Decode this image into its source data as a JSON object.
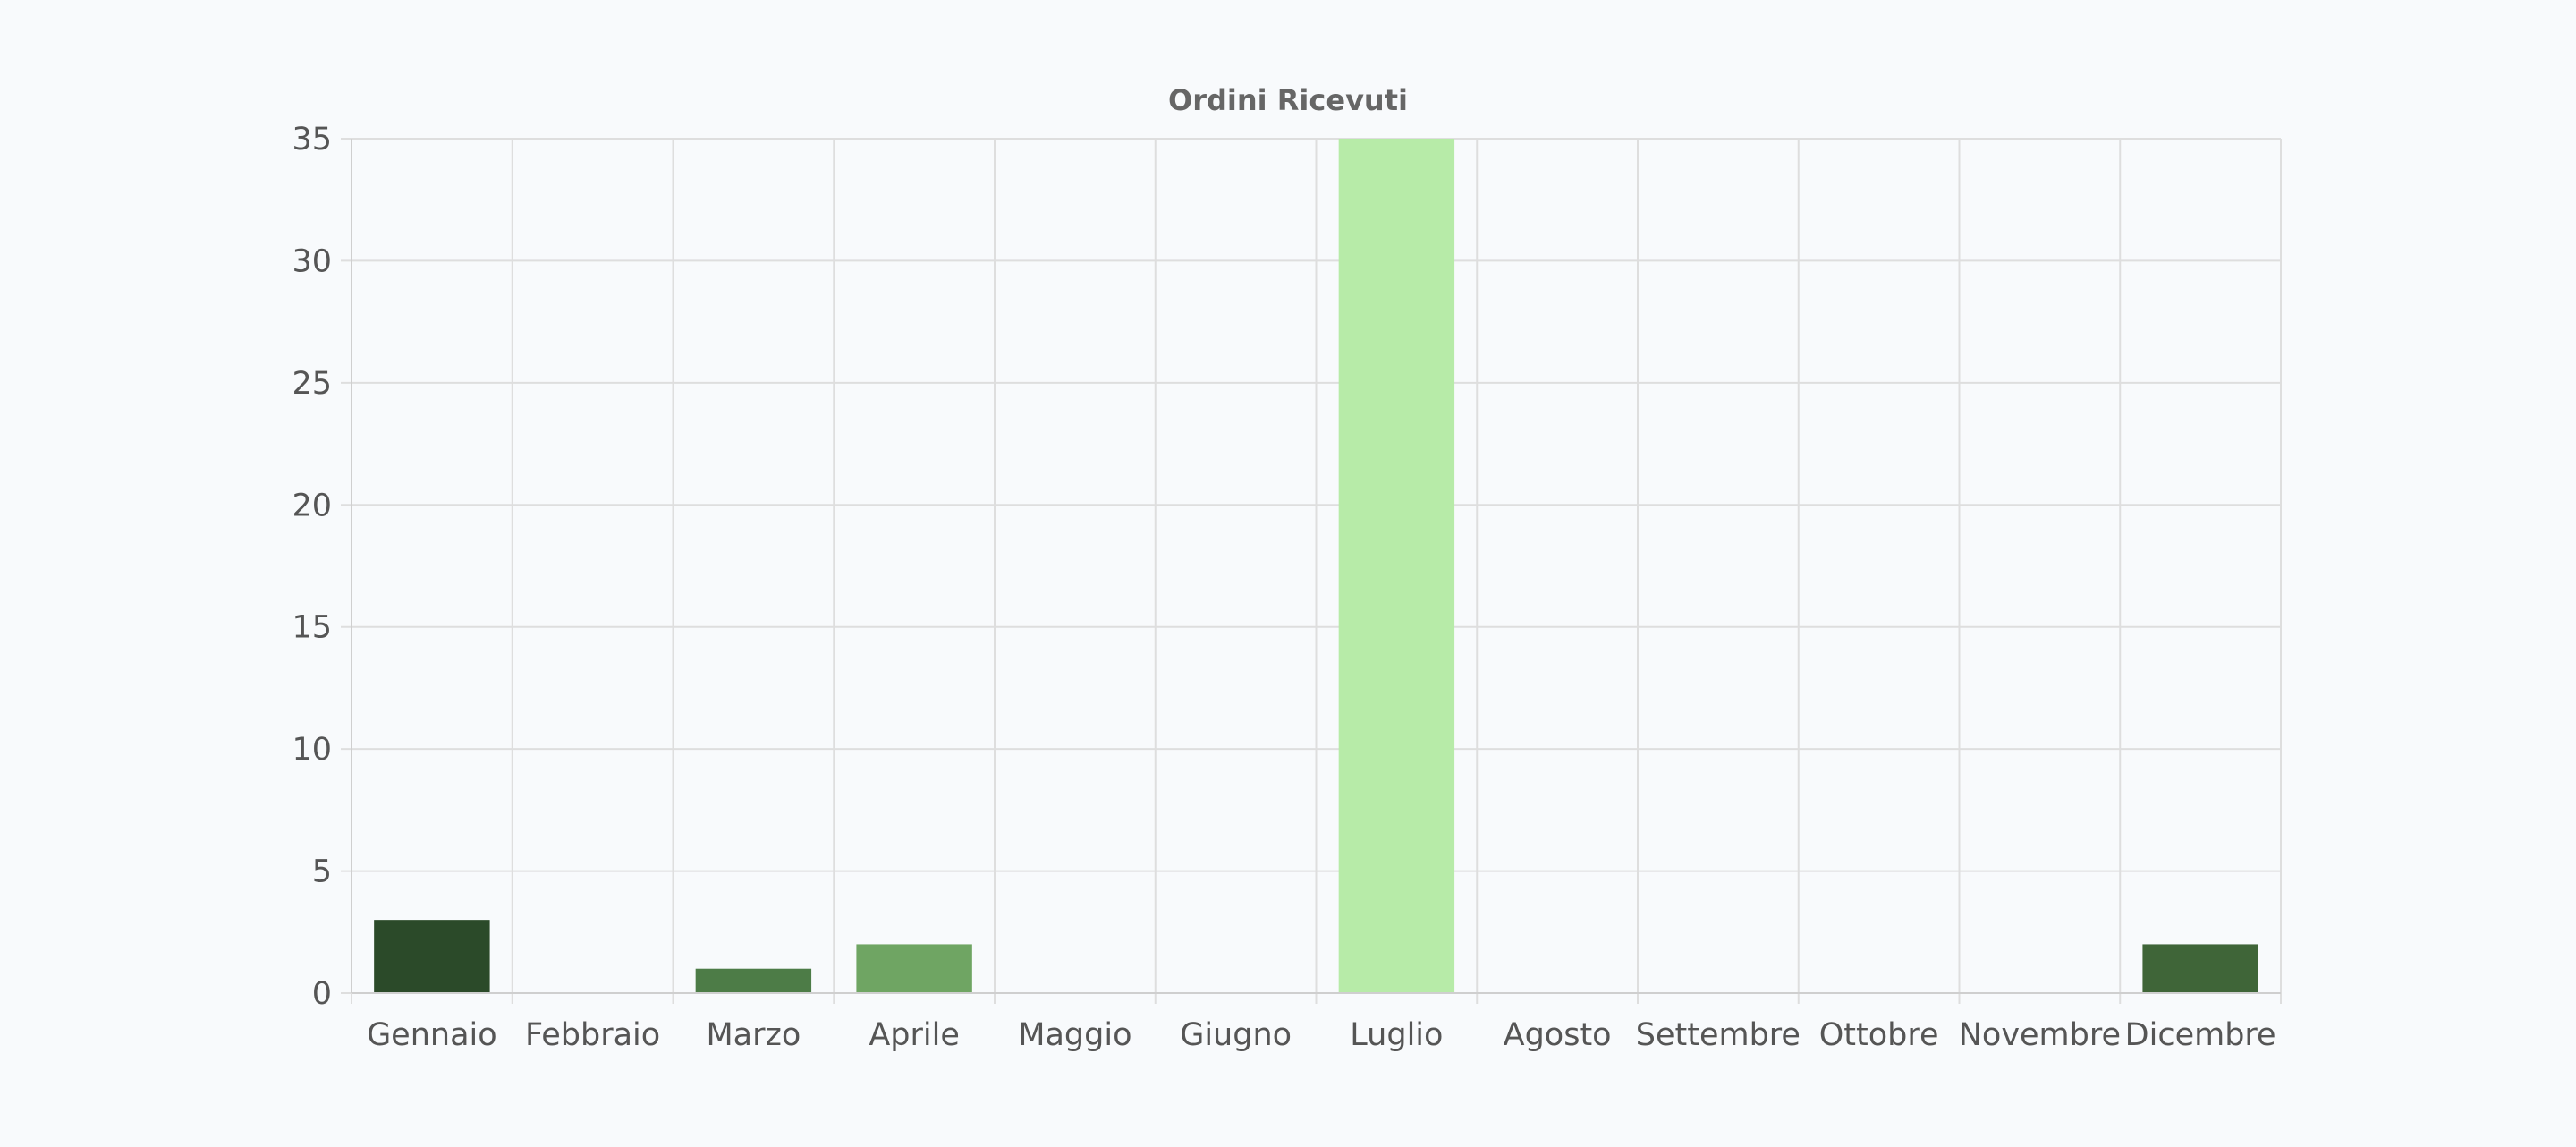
{
  "chart_data": {
    "type": "bar",
    "title": "Ordini Ricevuti",
    "xlabel": "",
    "ylabel": "",
    "categories": [
      "Gennaio",
      "Febbraio",
      "Marzo",
      "Aprile",
      "Maggio",
      "Giugno",
      "Luglio",
      "Agosto",
      "Settembre",
      "Ottobre",
      "Novembre",
      "Dicembre"
    ],
    "values": [
      3,
      0,
      1,
      2,
      0,
      0,
      35,
      0,
      0,
      0,
      0,
      2
    ],
    "bar_colors": [
      "#2b4a29",
      "#2b4a29",
      "#4d7c47",
      "#6fa563",
      "#6fa563",
      "#6fa563",
      "#b7eba8",
      "#b7eba8",
      "#b7eba8",
      "#b7eba8",
      "#b7eba8",
      "#3f6538"
    ],
    "ylim": [
      0,
      35
    ],
    "yticks": [
      0,
      5,
      10,
      15,
      20,
      25,
      30,
      35
    ],
    "grid": true,
    "legend": "none"
  }
}
